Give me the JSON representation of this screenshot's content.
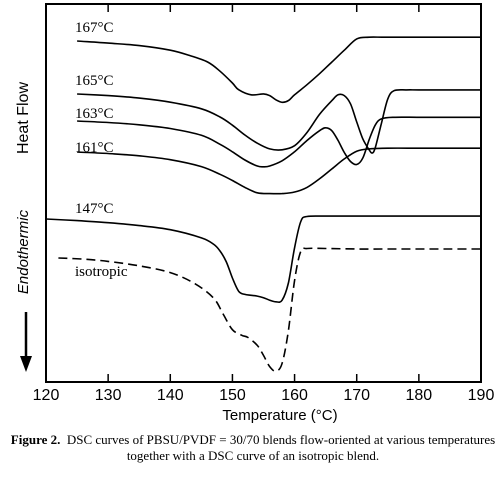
{
  "chart_data": {
    "type": "line",
    "xlabel": "Temperature (°C)",
    "ylabel": "Heat Flow",
    "y_annotation": "Endothermic",
    "xlim": [
      120,
      190
    ],
    "xticks": [
      "120",
      "130",
      "140",
      "150",
      "160",
      "170",
      "180",
      "190"
    ],
    "series": [
      {
        "name": "167°C",
        "style": "solid",
        "x": [
          125,
          130,
          135,
          140,
          143,
          146,
          148,
          150,
          151,
          153,
          155,
          156,
          157,
          158,
          159,
          160,
          162,
          164,
          166,
          168,
          170,
          172,
          174,
          176,
          180,
          185,
          190
        ],
        "y": [
          0,
          -0.25,
          -0.55,
          -1.1,
          -1.7,
          -2.5,
          -3.6,
          -5,
          -5.8,
          -6.4,
          -6.3,
          -6.5,
          -7,
          -7.3,
          -7.1,
          -6.4,
          -5.2,
          -3.9,
          -2.5,
          -1.1,
          0.25,
          0.45,
          0.45,
          0.45,
          0.45,
          0.45,
          0.45
        ]
      },
      {
        "name": "165°C",
        "style": "solid",
        "x": [
          125,
          130,
          135,
          140,
          145,
          148,
          150,
          152,
          154,
          156,
          158,
          160,
          162,
          164,
          166,
          167,
          168,
          169,
          170,
          171,
          172,
          172.5,
          173,
          174,
          175,
          176,
          178,
          180,
          185,
          190
        ],
        "y": [
          0,
          -0.2,
          -0.5,
          -1,
          -1.8,
          -2.8,
          -3.8,
          -5,
          -6,
          -6.7,
          -6.8,
          -6.3,
          -4.7,
          -2.5,
          -0.8,
          -0.1,
          -0.2,
          -1.2,
          -3.4,
          -5.5,
          -6.8,
          -7.2,
          -6.5,
          -3.5,
          -0.6,
          0.4,
          0.5,
          0.5,
          0.5,
          0.5
        ]
      },
      {
        "name": "163°C",
        "style": "solid",
        "x": [
          125,
          130,
          135,
          140,
          145,
          148,
          150,
          152,
          154,
          155,
          156,
          158,
          160,
          162,
          164,
          165,
          166,
          167,
          168,
          169,
          170,
          171,
          172,
          173,
          174,
          176,
          180,
          185,
          190
        ],
        "y": [
          0,
          -0.2,
          -0.5,
          -1,
          -1.9,
          -3.1,
          -4.1,
          -5.2,
          -6,
          -6.1,
          -6,
          -5.3,
          -4.1,
          -2.6,
          -1.3,
          -0.9,
          -1.3,
          -2.6,
          -4.2,
          -5.4,
          -5.8,
          -4.9,
          -2.5,
          -0.5,
          0.3,
          0.5,
          0.5,
          0.5,
          0.5
        ]
      },
      {
        "name": "161°C",
        "style": "solid",
        "x": [
          125,
          130,
          135,
          140,
          145,
          148,
          150,
          152,
          154,
          156,
          158,
          160,
          162,
          164,
          166,
          168,
          170,
          172,
          175,
          180,
          185,
          190
        ],
        "y": [
          0,
          -0.2,
          -0.5,
          -1,
          -1.9,
          -2.9,
          -3.7,
          -4.6,
          -5.3,
          -5.4,
          -5.4,
          -5.2,
          -4.6,
          -3.5,
          -2.2,
          -0.9,
          0.1,
          0.4,
          0.5,
          0.5,
          0.5,
          0.5
        ]
      },
      {
        "name": "147°C",
        "style": "solid",
        "x": [
          120,
          125,
          130,
          135,
          140,
          145,
          147,
          148,
          149,
          150,
          151,
          152,
          153,
          154,
          155,
          156,
          157,
          158,
          159,
          160,
          161,
          162,
          165,
          170,
          175,
          180,
          185,
          190
        ],
        "y": [
          0,
          -0.2,
          -0.45,
          -0.8,
          -1.3,
          -2.3,
          -3.1,
          -3.9,
          -5.2,
          -7.2,
          -8.8,
          -9.2,
          -9.3,
          -9.4,
          -9.6,
          -9.9,
          -10.1,
          -9.9,
          -7.8,
          -3.5,
          -0.3,
          0.3,
          0.35,
          0.35,
          0.35,
          0.35,
          0.35,
          0.35
        ]
      },
      {
        "name": "isotropic",
        "style": "dashed",
        "x": [
          122,
          126,
          130,
          135,
          140,
          144,
          147,
          148.5,
          150,
          151.5,
          152.5,
          154,
          155,
          156,
          157,
          158,
          159,
          160,
          161,
          162,
          165,
          170,
          175,
          180,
          185,
          190
        ],
        "y": [
          0,
          -0.1,
          -0.3,
          -0.7,
          -1.3,
          -2.3,
          -3.6,
          -5,
          -6.4,
          -6.9,
          -7.1,
          -7.8,
          -8.7,
          -9.7,
          -10.1,
          -9.4,
          -6.5,
          -2,
          0.6,
          0.85,
          0.85,
          0.8,
          0.8,
          0.8,
          0.8,
          0.8
        ]
      }
    ]
  },
  "caption": {
    "label": "Figure 2.",
    "text": "DSC curves of PBSU/PVDF = 30/70 blends flow-oriented at various temperatures together with a DSC curve of an isotropic blend."
  }
}
